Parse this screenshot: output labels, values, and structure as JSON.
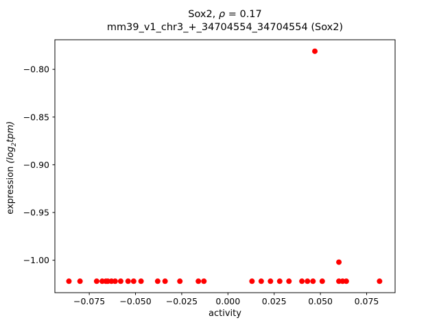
{
  "chart_data": {
    "type": "scatter",
    "title": "Sox2, ρ = 0.17",
    "title_prefix": "Sox2, ",
    "title_rho": "ρ",
    "title_suffix": " = 0.17",
    "subtitle": "mm39_v1_chr3_+_34704554_34704554 (Sox2)",
    "xlabel": "activity",
    "ylabel_prefix": "expression ",
    "ylabel_math_open": "(log",
    "ylabel_math_sub": "2",
    "ylabel_math_close": "tpm)",
    "marker_color": "#ff0000",
    "marker_radius": 4,
    "xlim": [
      -0.0936,
      0.0904
    ],
    "ylim": [
      -1.034,
      -0.769
    ],
    "grid": false,
    "legend": "none",
    "x_ticks": [
      {
        "v": -0.075,
        "label": "−0.075"
      },
      {
        "v": -0.05,
        "label": "−0.050"
      },
      {
        "v": -0.025,
        "label": "−0.025"
      },
      {
        "v": 0.0,
        "label": "0.000"
      },
      {
        "v": 0.025,
        "label": "0.025"
      },
      {
        "v": 0.05,
        "label": "0.050"
      },
      {
        "v": 0.075,
        "label": "0.075"
      }
    ],
    "y_ticks": [
      {
        "v": -0.8,
        "label": "−0.80"
      },
      {
        "v": -0.85,
        "label": "−0.85"
      },
      {
        "v": -0.9,
        "label": "−0.90"
      },
      {
        "v": -0.95,
        "label": "−0.95"
      },
      {
        "v": -1.0,
        "label": "−1.00"
      }
    ],
    "points": [
      [
        -0.086,
        -1.022
      ],
      [
        -0.08,
        -1.022
      ],
      [
        -0.071,
        -1.022
      ],
      [
        -0.068,
        -1.022
      ],
      [
        -0.066,
        -1.022
      ],
      [
        -0.065,
        -1.022
      ],
      [
        -0.063,
        -1.022
      ],
      [
        -0.061,
        -1.022
      ],
      [
        -0.058,
        -1.022
      ],
      [
        -0.054,
        -1.022
      ],
      [
        -0.051,
        -1.022
      ],
      [
        -0.047,
        -1.022
      ],
      [
        -0.038,
        -1.022
      ],
      [
        -0.034,
        -1.022
      ],
      [
        -0.026,
        -1.022
      ],
      [
        -0.016,
        -1.022
      ],
      [
        -0.013,
        -1.022
      ],
      [
        0.013,
        -1.022
      ],
      [
        0.018,
        -1.022
      ],
      [
        0.023,
        -1.022
      ],
      [
        0.028,
        -1.022
      ],
      [
        0.033,
        -1.022
      ],
      [
        0.04,
        -1.022
      ],
      [
        0.043,
        -1.022
      ],
      [
        0.046,
        -1.022
      ],
      [
        0.051,
        -1.022
      ],
      [
        0.06,
        -1.022
      ],
      [
        0.062,
        -1.022
      ],
      [
        0.064,
        -1.022
      ],
      [
        0.082,
        -1.022
      ],
      [
        0.047,
        -0.781
      ],
      [
        0.06,
        -1.002
      ]
    ]
  }
}
